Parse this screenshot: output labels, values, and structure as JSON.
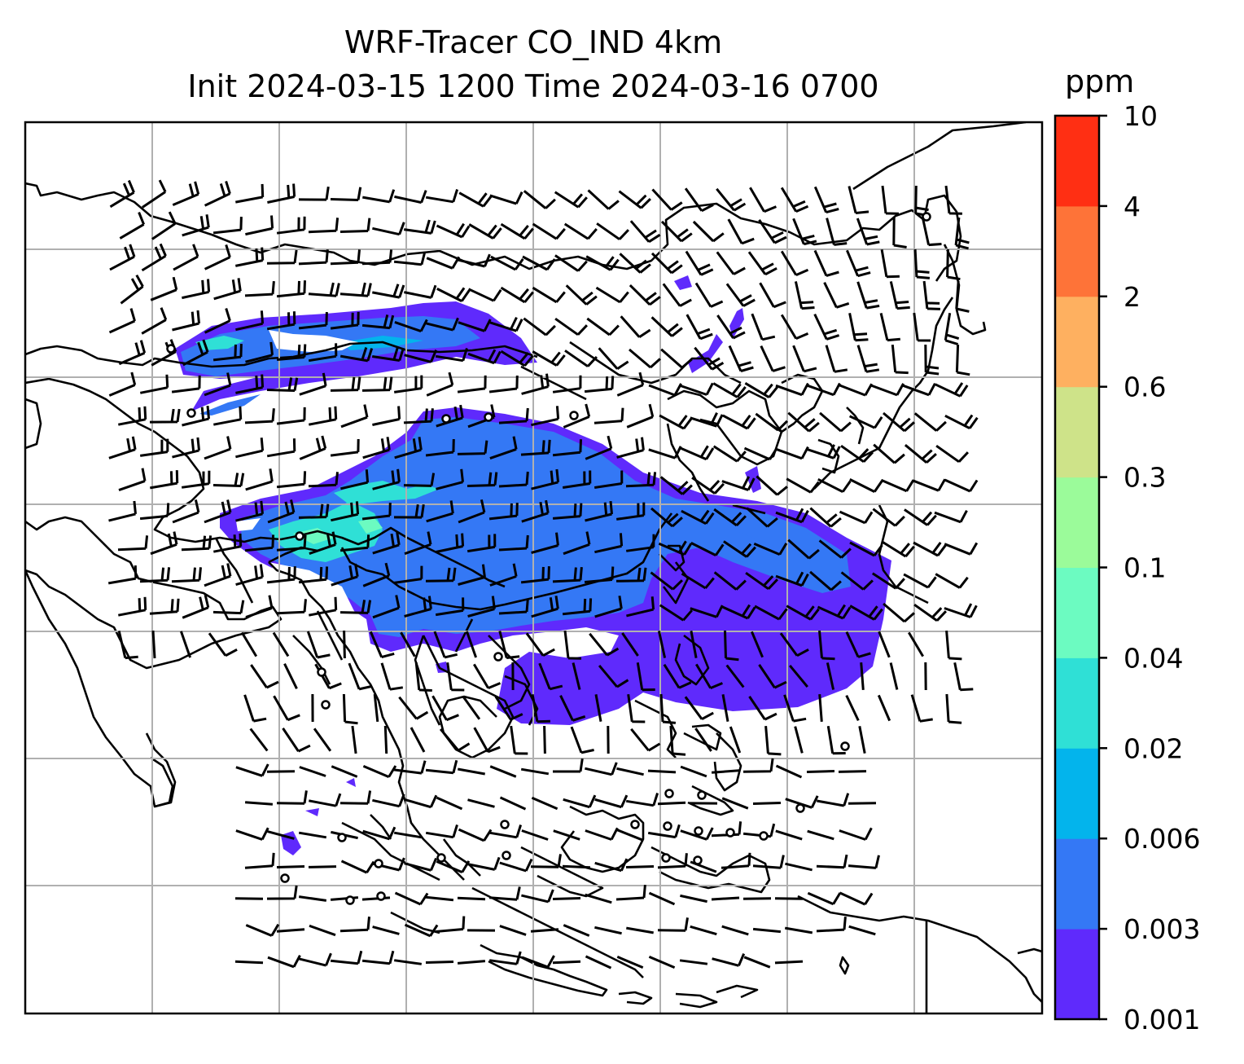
{
  "title": {
    "line1": "WRF-Tracer CO_IND 4km",
    "line2": "Init 2024-03-15 1200 Time 2024-03-16 0700"
  },
  "colorbar": {
    "unit": "ppm",
    "levels": [
      "0.001",
      "0.003",
      "0.006",
      "0.02",
      "0.04",
      "0.1",
      "0.3",
      "0.6",
      "2",
      "4",
      "10"
    ],
    "colors": [
      "#5f2afc",
      "#3478f5",
      "#03b4ec",
      "#2fe0d6",
      "#6cfbc1",
      "#9bfb9a",
      "#cee389",
      "#feb060",
      "#fe7338",
      "#ff2f13"
    ]
  },
  "map": {
    "plume_color_outer": "#5f2afc",
    "plume_color_inner": "#3478f5",
    "plume_color_core": "#2fe0d6",
    "gridlines": true,
    "overlay": "wind-barbs"
  }
}
